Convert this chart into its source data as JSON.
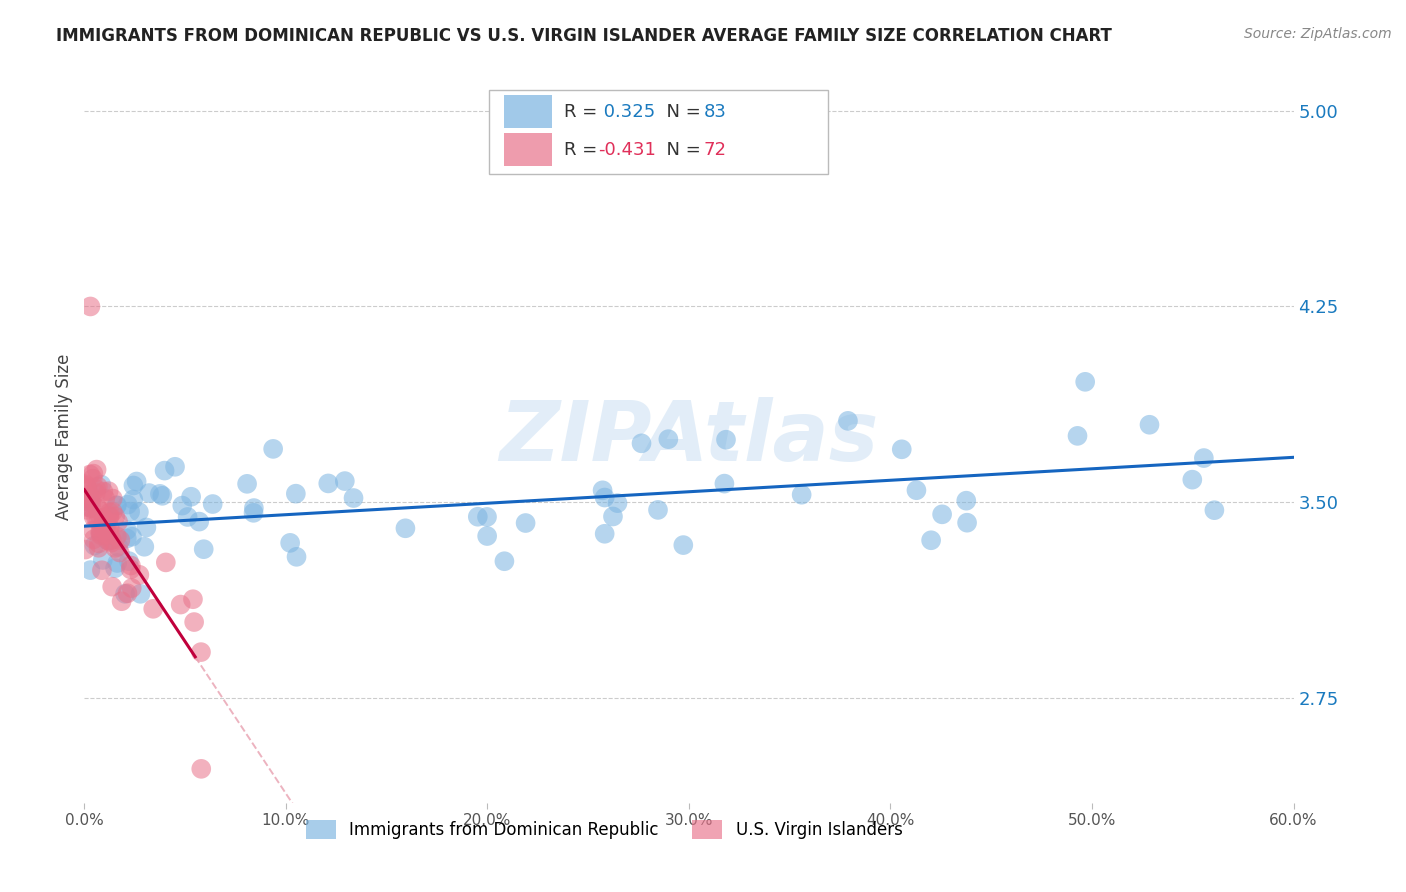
{
  "title": "IMMIGRANTS FROM DOMINICAN REPUBLIC VS U.S. VIRGIN ISLANDER AVERAGE FAMILY SIZE CORRELATION CHART",
  "source": "Source: ZipAtlas.com",
  "ylabel": "Average Family Size",
  "right_yticks": [
    2.75,
    3.5,
    4.25,
    5.0
  ],
  "xlim": [
    0.0,
    0.6
  ],
  "ylim": [
    2.35,
    5.15
  ],
  "xtick_labels": [
    "0.0%",
    "10.0%",
    "20.0%",
    "30.0%",
    "40.0%",
    "50.0%",
    "60.0%"
  ],
  "xtick_values": [
    0.0,
    0.1,
    0.2,
    0.3,
    0.4,
    0.5,
    0.6
  ],
  "blue_R": 0.325,
  "blue_N": 83,
  "pink_R": -0.431,
  "pink_N": 72,
  "blue_color": "#7ab3e0",
  "pink_color": "#e8728a",
  "blue_line_color": "#1565c0",
  "pink_line_solid_color": "#c0003c",
  "pink_line_dash_color": "#e8a0b0",
  "blue_label": "Immigrants from Dominican Republic",
  "pink_label": "U.S. Virgin Islanders",
  "watermark": "ZIPAtlas",
  "legend_R_blue_color": "#1a7abf",
  "legend_N_blue_color": "#1a7abf",
  "legend_R_pink_color": "#e0305a",
  "legend_N_pink_color": "#e0305a"
}
